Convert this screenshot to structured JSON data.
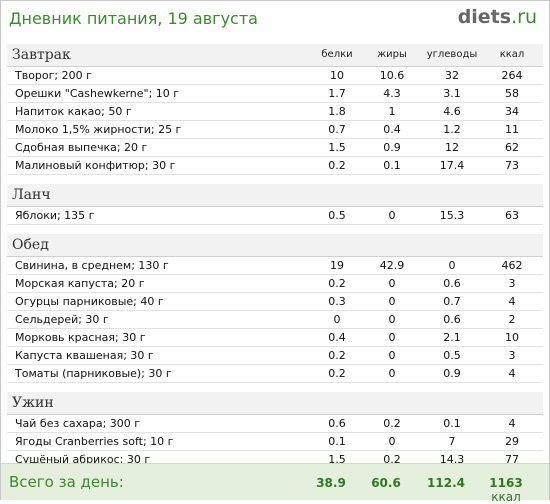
{
  "header": {
    "title": "Дневник питания, 19 августа",
    "brand_name": "diets",
    "brand_tld": ".ru"
  },
  "columns": [
    "белки",
    "жиры",
    "углеводы",
    "ккал"
  ],
  "sections": [
    {
      "name": "Завтрак",
      "items": [
        {
          "name": "Творог; 200 г",
          "protein": "10",
          "fat": "10.6",
          "carbs": "32",
          "kcal": "264"
        },
        {
          "name": "Орешки \"Cashewkerne\"; 10 г",
          "protein": "1.7",
          "fat": "4.3",
          "carbs": "3.1",
          "kcal": "58"
        },
        {
          "name": "Напиток какао; 50 г",
          "protein": "1.8",
          "fat": "1",
          "carbs": "4.6",
          "kcal": "34"
        },
        {
          "name": "Молоко 1,5% жирности; 25 г",
          "protein": "0.7",
          "fat": "0.4",
          "carbs": "1.2",
          "kcal": "11"
        },
        {
          "name": "Сдобная выпечка; 20 г",
          "protein": "1.5",
          "fat": "0.9",
          "carbs": "12",
          "kcal": "62"
        },
        {
          "name": "Малиновый конфитюр; 30 г",
          "protein": "0.2",
          "fat": "0.1",
          "carbs": "17.4",
          "kcal": "73"
        }
      ]
    },
    {
      "name": "Ланч",
      "items": [
        {
          "name": "Яблоки; 135 г",
          "protein": "0.5",
          "fat": "0",
          "carbs": "15.3",
          "kcal": "63"
        }
      ]
    },
    {
      "name": "Обед",
      "items": [
        {
          "name": "Свинина, в среднем; 130 г",
          "protein": "19",
          "fat": "42.9",
          "carbs": "0",
          "kcal": "462"
        },
        {
          "name": "Морская капуста; 20 г",
          "protein": "0.2",
          "fat": "0",
          "carbs": "0.6",
          "kcal": "3"
        },
        {
          "name": "Огурцы парниковые; 40 г",
          "protein": "0.3",
          "fat": "0",
          "carbs": "0.7",
          "kcal": "4"
        },
        {
          "name": "Сельдерей; 30 г",
          "protein": "0",
          "fat": "0",
          "carbs": "0.6",
          "kcal": "2"
        },
        {
          "name": "Морковь красная; 30 г",
          "protein": "0.4",
          "fat": "0",
          "carbs": "2.1",
          "kcal": "10"
        },
        {
          "name": "Капуста квашеная; 30 г",
          "protein": "0.2",
          "fat": "0",
          "carbs": "0.5",
          "kcal": "3"
        },
        {
          "name": "Томаты (парниковые); 30 г",
          "protein": "0.2",
          "fat": "0",
          "carbs": "0.9",
          "kcal": "4"
        }
      ]
    },
    {
      "name": "Ужин",
      "items": [
        {
          "name": "Чай без сахара; 300 г",
          "protein": "0.6",
          "fat": "0.2",
          "carbs": "0.1",
          "kcal": "4"
        },
        {
          "name": "Ягоды Cranberries soft; 10 г",
          "protein": "0.1",
          "fat": "0",
          "carbs": "7",
          "kcal": "29"
        },
        {
          "name": "Сушёный абрикос; 30 г",
          "protein": "1.5",
          "fat": "0.2",
          "carbs": "14.3",
          "kcal": "77"
        }
      ]
    }
  ],
  "totals": {
    "label": "Всего за день:",
    "protein": "38.9",
    "fat": "60.6",
    "carbs": "112.4",
    "kcal": "1163",
    "kcal_unit": "ккал"
  }
}
